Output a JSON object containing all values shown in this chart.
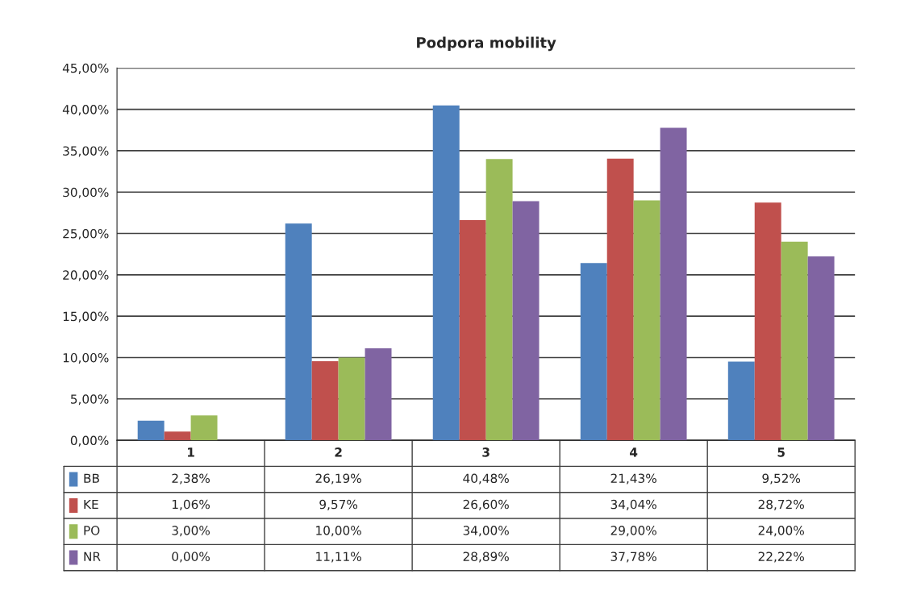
{
  "chart_data": {
    "type": "bar",
    "title": "Podpora mobility",
    "categories": [
      "1",
      "2",
      "3",
      "4",
      "5"
    ],
    "series": [
      {
        "name": "BB",
        "color": "#4f81bd",
        "values": [
          2.38,
          26.19,
          40.48,
          21.43,
          9.52
        ],
        "value_labels": [
          "2,38%",
          "26,19%",
          "40,48%",
          "21,43%",
          "9,52%"
        ]
      },
      {
        "name": "KE",
        "color": "#c0504d",
        "values": [
          1.06,
          9.57,
          26.6,
          34.04,
          28.72
        ],
        "value_labels": [
          "1,06%",
          "9,57%",
          "26,60%",
          "34,04%",
          "28,72%"
        ]
      },
      {
        "name": "PO",
        "color": "#9bbb59",
        "values": [
          3.0,
          10.0,
          34.0,
          29.0,
          24.0
        ],
        "value_labels": [
          "3,00%",
          "10,00%",
          "34,00%",
          "29,00%",
          "24,00%"
        ]
      },
      {
        "name": "NR",
        "color": "#8064a2",
        "values": [
          0.0,
          11.11,
          28.89,
          37.78,
          22.22
        ],
        "value_labels": [
          "0,00%",
          "11,11%",
          "28,89%",
          "37,78%",
          "22,22%"
        ]
      }
    ],
    "ylim": [
      0,
      45
    ],
    "yticks": [
      {
        "value": 0,
        "label": "0,00%"
      },
      {
        "value": 5,
        "label": "5,00%"
      },
      {
        "value": 10,
        "label": "10,00%"
      },
      {
        "value": 15,
        "label": "15,00%"
      },
      {
        "value": 20,
        "label": "20,00%"
      },
      {
        "value": 25,
        "label": "25,00%"
      },
      {
        "value": 30,
        "label": "30,00%"
      },
      {
        "value": 35,
        "label": "35,00%"
      },
      {
        "value": 40,
        "label": "40,00%"
      },
      {
        "value": 45,
        "label": "45,00%"
      }
    ],
    "grid": "y",
    "legend": "bottom left"
  }
}
